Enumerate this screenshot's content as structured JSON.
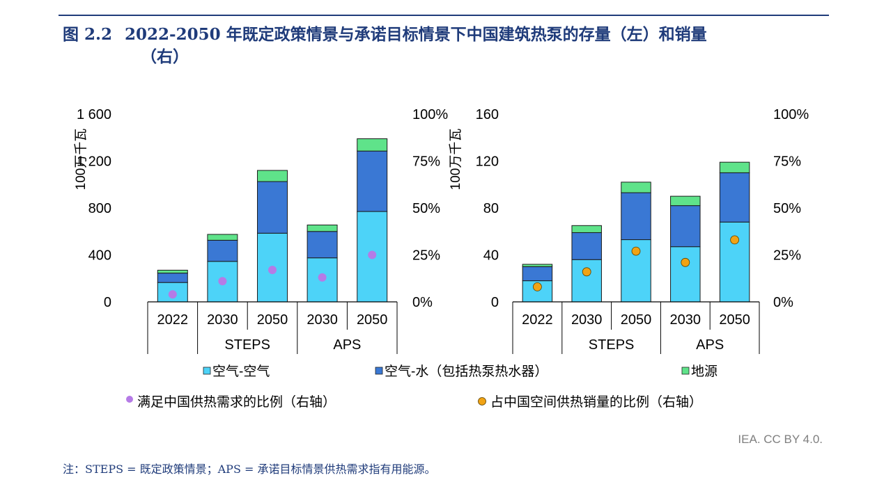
{
  "header": {
    "figure_number": "图 2.2",
    "title_line1": "2022-2050 年既定政策情景与承诺目标情景下中国建筑热泵的存量（左）和销量",
    "title_line2": "（右）"
  },
  "source": "IEA. CC BY 4.0.",
  "note": "注：STEPS = 既定政策情景；APS = 承诺目标情景供热需求指有用能源。",
  "legend": {
    "air_air": "空气-空气",
    "air_water": "空气-水（包括热泵热水器）",
    "ground": "地源",
    "share_demand": "满足中国供热需求的比例（右轴）",
    "share_sales": "占中国空间供热销量的比例（右轴）"
  },
  "colors": {
    "air_air": "#4dd3f8",
    "air_water": "#3a78d4",
    "ground": "#5fe38a",
    "dot_demand": "#b57be6",
    "dot_sales": "#f1a314",
    "title": "#1f3b7a"
  },
  "chart_data": [
    {
      "type": "bar",
      "stacked": true,
      "ylabel": "100万千瓦",
      "ylim": [
        0,
        1600
      ],
      "yticks": [
        "0",
        "400",
        "800",
        "1 200",
        "1 600"
      ],
      "y2lim": [
        0,
        100
      ],
      "y2ticks": [
        "0%",
        "25%",
        "50%",
        "75%",
        "100%"
      ],
      "categories": [
        "2022",
        "2030",
        "2050",
        "2030",
        "2050"
      ],
      "groups": [
        {
          "label": "",
          "count": 1
        },
        {
          "label": "STEPS",
          "count": 2
        },
        {
          "label": "APS",
          "count": 2
        }
      ],
      "series": [
        {
          "name": "空气-空气",
          "values": [
            165,
            345,
            585,
            375,
            770
          ]
        },
        {
          "name": "空气-水（包括热泵热水器）",
          "values": [
            80,
            180,
            440,
            225,
            515
          ]
        },
        {
          "name": "地源",
          "values": [
            25,
            50,
            95,
            55,
            105
          ]
        }
      ],
      "dots": {
        "name": "满足中国供热需求的比例（右轴）",
        "values": [
          4,
          11,
          17,
          13,
          25
        ]
      }
    },
    {
      "type": "bar",
      "stacked": true,
      "ylabel": "100万千瓦",
      "ylim": [
        0,
        160
      ],
      "yticks": [
        "0",
        "40",
        "80",
        "120",
        "160"
      ],
      "y2lim": [
        0,
        100
      ],
      "y2ticks": [
        "0%",
        "25%",
        "50%",
        "75%",
        "100%"
      ],
      "categories": [
        "2022",
        "2030",
        "2050",
        "2030",
        "2050"
      ],
      "groups": [
        {
          "label": "",
          "count": 1
        },
        {
          "label": "STEPS",
          "count": 2
        },
        {
          "label": "APS",
          "count": 2
        }
      ],
      "series": [
        {
          "name": "空气-空气",
          "values": [
            18,
            36,
            53,
            47,
            68
          ]
        },
        {
          "name": "空气-水（包括热泵热水器）",
          "values": [
            12,
            23,
            40,
            35,
            42
          ]
        },
        {
          "name": "地源",
          "values": [
            2,
            6,
            9,
            8,
            9
          ]
        }
      ],
      "dots": {
        "name": "占中国空间供热销量的比例（右轴）",
        "values": [
          8,
          16,
          27,
          21,
          33
        ]
      }
    }
  ]
}
